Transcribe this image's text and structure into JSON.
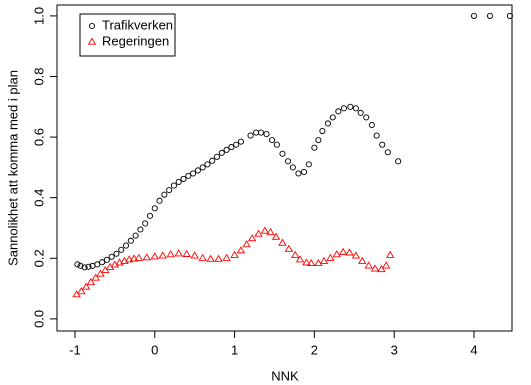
{
  "chart_data": {
    "type": "scatter",
    "xlabel": "NNK",
    "ylabel": "Sannolikhet att komma med i plan",
    "xlim": [
      -1.225,
      4.476
    ],
    "ylim": [
      -0.04,
      1.036
    ],
    "xticks": [
      -1,
      0,
      1,
      2,
      3,
      4
    ],
    "yticks": [
      {
        "value": 0,
        "label": "0.0"
      },
      0.2,
      0.4,
      0.6,
      0.8,
      {
        "value": 1,
        "label": "1.0"
      }
    ],
    "grid": false,
    "legend": "topleft",
    "series": [
      {
        "name": "Trafikverken",
        "color": "#000000",
        "marker": "circle",
        "x": [
          -0.97,
          -0.93,
          -0.88,
          -0.83,
          -0.78,
          -0.72,
          -0.66,
          -0.6,
          -0.54,
          -0.48,
          -0.42,
          -0.36,
          -0.3,
          -0.24,
          -0.18,
          -0.12,
          -0.06,
          0,
          0.06,
          0.12,
          0.18,
          0.24,
          0.3,
          0.36,
          0.42,
          0.48,
          0.54,
          0.6,
          0.66,
          0.72,
          0.78,
          0.84,
          0.9,
          0.96,
          1.02,
          1.08,
          1.2,
          1.27,
          1.33,
          1.4,
          1.47,
          1.53,
          1.6,
          1.67,
          1.73,
          1.8,
          1.87,
          1.93,
          2.0,
          2.05,
          2.1,
          2.17,
          2.23,
          2.3,
          2.37,
          2.45,
          2.52,
          2.58,
          2.65,
          2.72,
          2.78,
          2.85,
          2.92,
          3.05,
          4.0,
          4.2,
          4.45
        ],
        "values": [
          0.18,
          0.175,
          0.17,
          0.172,
          0.175,
          0.18,
          0.187,
          0.195,
          0.205,
          0.215,
          0.228,
          0.242,
          0.258,
          0.275,
          0.295,
          0.315,
          0.34,
          0.365,
          0.39,
          0.41,
          0.425,
          0.44,
          0.452,
          0.462,
          0.472,
          0.48,
          0.49,
          0.5,
          0.51,
          0.522,
          0.535,
          0.548,
          0.558,
          0.567,
          0.575,
          0.585,
          0.605,
          0.615,
          0.615,
          0.61,
          0.59,
          0.575,
          0.545,
          0.52,
          0.5,
          0.48,
          0.485,
          0.51,
          0.565,
          0.59,
          0.62,
          0.645,
          0.665,
          0.685,
          0.695,
          0.7,
          0.695,
          0.68,
          0.665,
          0.64,
          0.605,
          0.575,
          0.55,
          0.52,
          1.0,
          1.0,
          1.0
        ]
      },
      {
        "name": "Regeringen",
        "color": "#ff0000",
        "marker": "triangle",
        "x": [
          -0.98,
          -0.92,
          -0.86,
          -0.8,
          -0.74,
          -0.68,
          -0.62,
          -0.56,
          -0.5,
          -0.44,
          -0.38,
          -0.32,
          -0.26,
          -0.2,
          -0.1,
          0,
          0.1,
          0.2,
          0.3,
          0.4,
          0.5,
          0.6,
          0.7,
          0.8,
          0.9,
          1.0,
          1.08,
          1.15,
          1.22,
          1.3,
          1.38,
          1.45,
          1.52,
          1.6,
          1.68,
          1.76,
          1.82,
          1.9,
          1.96,
          2.05,
          2.12,
          2.2,
          2.28,
          2.36,
          2.44,
          2.52,
          2.6,
          2.68,
          2.76,
          2.84,
          2.9,
          2.95
        ],
        "values": [
          0.08,
          0.09,
          0.105,
          0.12,
          0.135,
          0.148,
          0.16,
          0.17,
          0.178,
          0.185,
          0.19,
          0.195,
          0.198,
          0.2,
          0.202,
          0.205,
          0.208,
          0.212,
          0.215,
          0.213,
          0.208,
          0.2,
          0.197,
          0.197,
          0.2,
          0.21,
          0.225,
          0.245,
          0.265,
          0.28,
          0.29,
          0.285,
          0.27,
          0.25,
          0.23,
          0.21,
          0.195,
          0.185,
          0.183,
          0.183,
          0.19,
          0.2,
          0.212,
          0.22,
          0.218,
          0.208,
          0.19,
          0.175,
          0.165,
          0.163,
          0.175,
          0.21
        ]
      }
    ]
  }
}
